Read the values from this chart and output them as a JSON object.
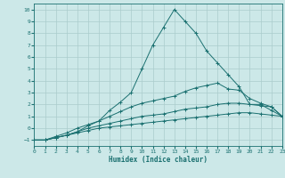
{
  "xlabel": "Humidex (Indice chaleur)",
  "background_color": "#cce8e8",
  "grid_color": "#aacccc",
  "line_color": "#1a7070",
  "xlim": [
    0,
    23
  ],
  "ylim": [
    -1.5,
    10.5
  ],
  "xticks": [
    0,
    1,
    2,
    3,
    4,
    5,
    6,
    7,
    8,
    9,
    10,
    11,
    12,
    13,
    14,
    15,
    16,
    17,
    18,
    19,
    20,
    21,
    22,
    23
  ],
  "yticks": [
    -1,
    0,
    1,
    2,
    3,
    4,
    5,
    6,
    7,
    8,
    9,
    10
  ],
  "series": [
    {
      "x": [
        0,
        1,
        2,
        3,
        4,
        5,
        6,
        7,
        8,
        9,
        10,
        11,
        12,
        13,
        14,
        15,
        16,
        17,
        18,
        19,
        20,
        21,
        22,
        23
      ],
      "y": [
        -1,
        -1,
        -0.8,
        -0.6,
        -0.4,
        -0.2,
        0.0,
        0.1,
        0.2,
        0.3,
        0.4,
        0.5,
        0.6,
        0.7,
        0.8,
        0.9,
        1.0,
        1.1,
        1.2,
        1.3,
        1.3,
        1.2,
        1.1,
        1.0
      ]
    },
    {
      "x": [
        0,
        1,
        2,
        3,
        4,
        5,
        6,
        7,
        8,
        9,
        10,
        11,
        12,
        13,
        14,
        15,
        16,
        17,
        18,
        19,
        20,
        21,
        22,
        23
      ],
      "y": [
        -1,
        -1,
        -0.8,
        -0.6,
        -0.3,
        0.0,
        0.2,
        0.4,
        0.6,
        0.8,
        1.0,
        1.1,
        1.2,
        1.4,
        1.6,
        1.7,
        1.8,
        2.0,
        2.1,
        2.1,
        2.0,
        1.9,
        1.8,
        1.0
      ]
    },
    {
      "x": [
        0,
        1,
        2,
        3,
        4,
        5,
        6,
        7,
        8,
        9,
        10,
        11,
        12,
        13,
        14,
        15,
        16,
        17,
        18,
        19,
        20,
        21,
        22,
        23
      ],
      "y": [
        -1,
        -1,
        -0.7,
        -0.4,
        0.0,
        0.3,
        0.6,
        1.0,
        1.4,
        1.8,
        2.1,
        2.3,
        2.5,
        2.7,
        3.1,
        3.4,
        3.6,
        3.8,
        3.3,
        3.2,
        2.5,
        2.1,
        1.8,
        1.0
      ]
    },
    {
      "x": [
        0,
        1,
        2,
        3,
        4,
        5,
        6,
        7,
        8,
        9,
        10,
        11,
        12,
        13,
        14,
        15,
        16,
        17,
        18,
        19,
        20,
        21,
        22,
        23
      ],
      "y": [
        -1,
        -1,
        -0.8,
        -0.6,
        -0.3,
        0.2,
        0.6,
        1.5,
        2.2,
        3.0,
        5.0,
        7.0,
        8.5,
        10.0,
        9.0,
        8.0,
        6.5,
        5.5,
        4.5,
        3.5,
        2.0,
        2.0,
        1.5,
        1.0
      ]
    }
  ]
}
